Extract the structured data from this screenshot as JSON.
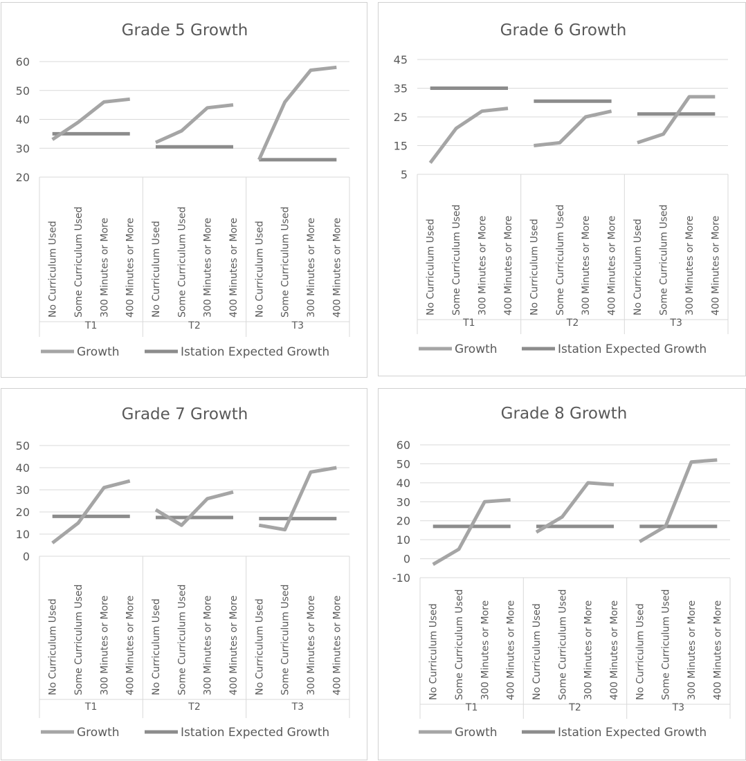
{
  "colors": {
    "growth": "#a5a5a5",
    "expected": "#8c8c8c",
    "text": "#595959",
    "grid": "#d9d9d9"
  },
  "legend": {
    "growth_label": "Growth",
    "expected_label": "Istation Expected Growth"
  },
  "chart_data": [
    {
      "type": "line",
      "title": "Grade 5 Growth",
      "groups": [
        "T1",
        "T2",
        "T3"
      ],
      "categories": [
        "No Curriculum Used",
        "Some Curriculum Used",
        "300 Minutes or More",
        "400 Minutes or More"
      ],
      "ylim": [
        20,
        60
      ],
      "yticks": [
        20,
        30,
        40,
        50,
        60
      ],
      "series": [
        {
          "name": "Growth",
          "values": [
            [
              33,
              39,
              46,
              47
            ],
            [
              32,
              36,
              44,
              45
            ],
            [
              26,
              46,
              57,
              58
            ]
          ]
        },
        {
          "name": "Istation Expected Growth",
          "values": [
            [
              35,
              35,
              35,
              35
            ],
            [
              30.5,
              30.5,
              30.5,
              30.5
            ],
            [
              26,
              26,
              26,
              26
            ]
          ]
        }
      ],
      "grid": true,
      "legend_position": "bottom"
    },
    {
      "type": "line",
      "title": "Grade 6 Growth",
      "groups": [
        "T1",
        "T2",
        "T3"
      ],
      "categories": [
        "No Curriculum Used",
        "Some Curriculum Used",
        "300 Minutes or More",
        "400 Minutes or More"
      ],
      "ylim": [
        5,
        45
      ],
      "yticks": [
        5,
        15,
        25,
        35,
        45
      ],
      "series": [
        {
          "name": "Growth",
          "values": [
            [
              9,
              21,
              27,
              28
            ],
            [
              15,
              16,
              25,
              27
            ],
            [
              16,
              19,
              32,
              32
            ]
          ]
        },
        {
          "name": "Istation Expected Growth",
          "values": [
            [
              35,
              35,
              35,
              35
            ],
            [
              30.5,
              30.5,
              30.5,
              30.5
            ],
            [
              26,
              26,
              26,
              26
            ]
          ]
        }
      ],
      "grid": true,
      "legend_position": "bottom"
    },
    {
      "type": "line",
      "title": "Grade 7 Growth",
      "groups": [
        "T1",
        "T2",
        "T3"
      ],
      "categories": [
        "No Curriculum Used",
        "Some Curriculum Used",
        "300 Minutes or More",
        "400 Minutes or More"
      ],
      "ylim": [
        0,
        50
      ],
      "yticks": [
        0,
        10,
        20,
        30,
        40,
        50
      ],
      "series": [
        {
          "name": "Growth",
          "values": [
            [
              6,
              15,
              31,
              34
            ],
            [
              21,
              14,
              26,
              29
            ],
            [
              14,
              12,
              38,
              40
            ]
          ]
        },
        {
          "name": "Istation Expected Growth",
          "values": [
            [
              18,
              18,
              18,
              18
            ],
            [
              17.5,
              17.5,
              17.5,
              17.5
            ],
            [
              17,
              17,
              17,
              17
            ]
          ]
        }
      ],
      "grid": true,
      "legend_position": "bottom"
    },
    {
      "type": "line",
      "title": "Grade 8 Growth",
      "groups": [
        "T1",
        "T2",
        "T3"
      ],
      "categories": [
        "No Curriculum Used",
        "Some Curriculum Used",
        "300 Minutes or More",
        "400 Minutes or More"
      ],
      "ylim": [
        -10,
        60
      ],
      "yticks": [
        -10,
        0,
        10,
        20,
        30,
        40,
        50,
        60
      ],
      "series": [
        {
          "name": "Growth",
          "values": [
            [
              -3,
              5,
              30,
              31
            ],
            [
              14,
              22,
              40,
              39
            ],
            [
              9,
              17,
              51,
              52
            ]
          ]
        },
        {
          "name": "Istation Expected Growth",
          "values": [
            [
              17,
              17,
              17,
              17
            ],
            [
              17,
              17,
              17,
              17
            ],
            [
              17,
              17,
              17,
              17
            ]
          ]
        }
      ],
      "grid": true,
      "legend_position": "bottom"
    }
  ]
}
